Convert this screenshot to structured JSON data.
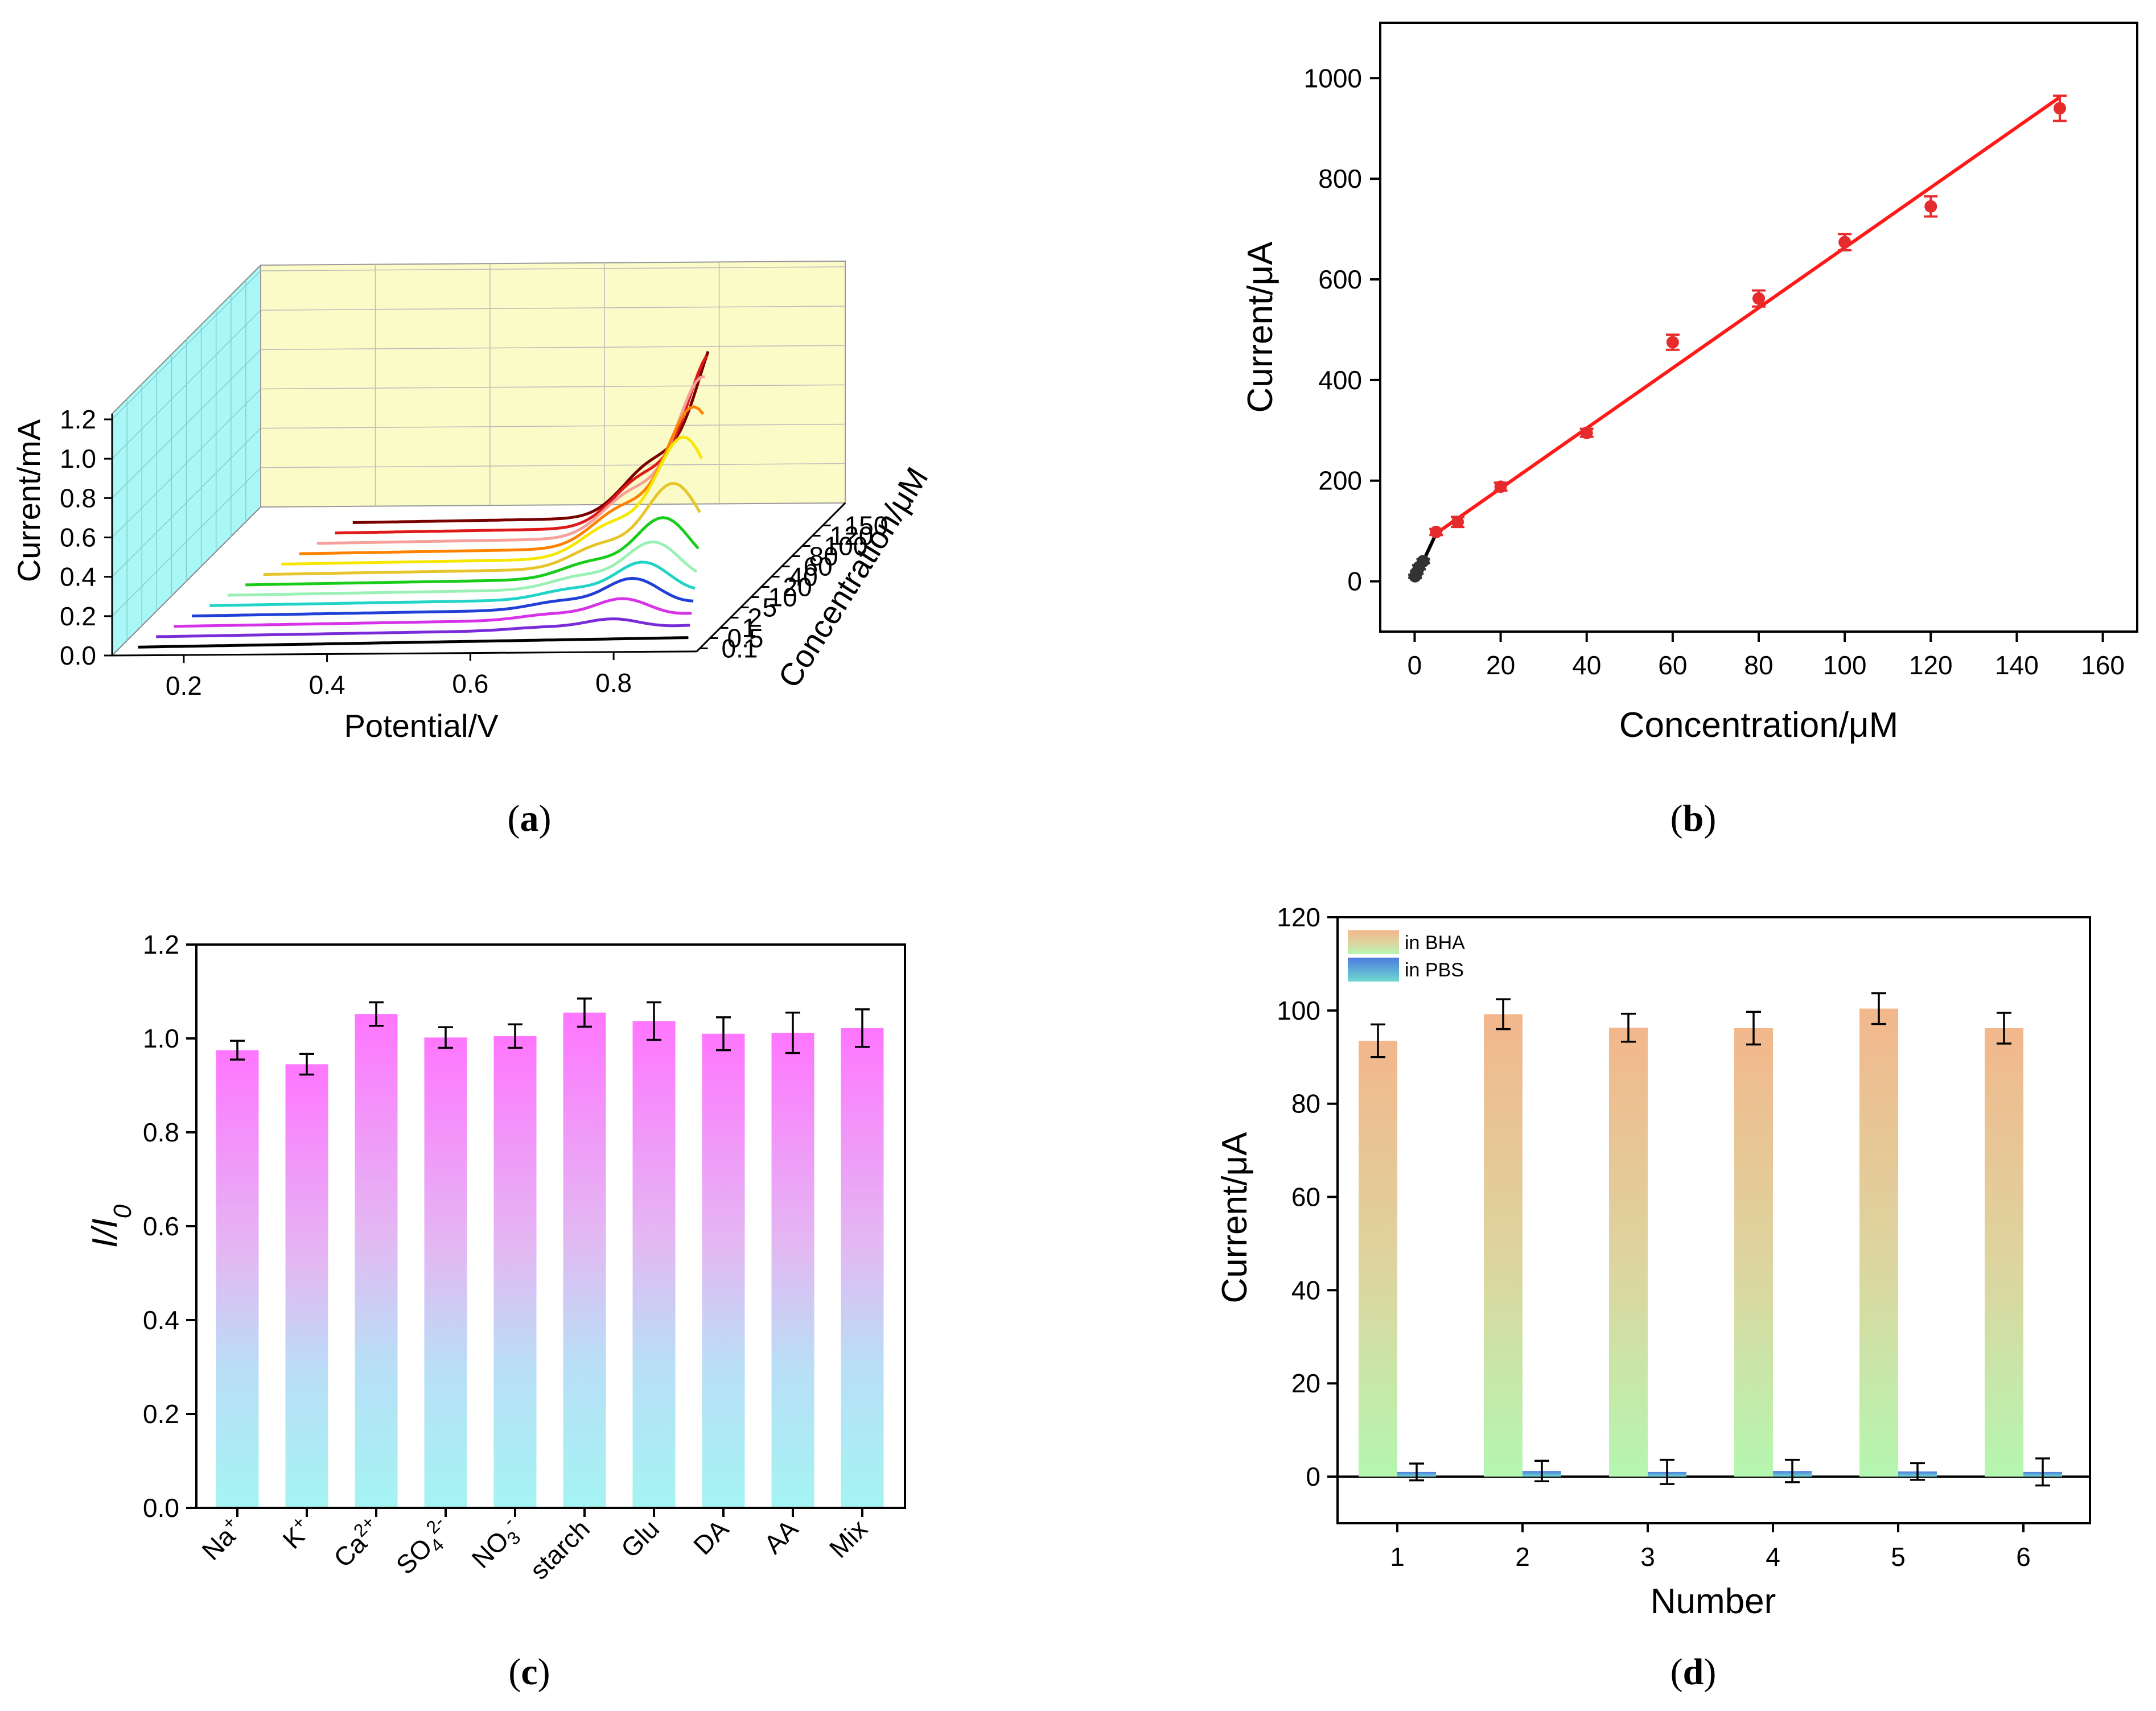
{
  "chart_data": [
    {
      "panel": "a",
      "type": "line",
      "caption": {
        "open": "(",
        "letter": "a",
        "close": ")"
      },
      "xlabel": "Potential/V",
      "ylabel": "Current/mA",
      "zlabel": "Concentration/μM",
      "xlim": [
        0.1,
        0.9
      ],
      "ylim": [
        0,
        1.2
      ],
      "xticks": [
        "0.2",
        "0.4",
        "0.6",
        "0.8"
      ],
      "yticks": [
        "0.0",
        "0.2",
        "0.4",
        "0.6",
        "0.8",
        "1.0",
        "1.2"
      ],
      "series": [
        {
          "name": "0.1",
          "color": "#000000",
          "peak": 0.0
        },
        {
          "name": "0.5",
          "color": "#7a2bd8",
          "peak": 0.05
        },
        {
          "name": "1",
          "color": "#d633e8",
          "peak": 0.1
        },
        {
          "name": "2",
          "color": "#1f3fd6",
          "peak": 0.15
        },
        {
          "name": "5",
          "color": "#22d4c7",
          "peak": 0.18
        },
        {
          "name": "10",
          "color": "#9bf0b4",
          "peak": 0.23
        },
        {
          "name": "20",
          "color": "#19cc1a",
          "peak": 0.3
        },
        {
          "name": "40",
          "color": "#e6c52a",
          "peak": 0.42
        },
        {
          "name": "60",
          "color": "#f6e600",
          "peak": 0.6
        },
        {
          "name": "80",
          "color": "#ff8200",
          "peak": 0.7
        },
        {
          "name": "100",
          "color": "#f5a09a",
          "peak": 0.8
        },
        {
          "name": "120",
          "color": "#e01818",
          "peak": 0.88
        },
        {
          "name": "150",
          "color": "#7a0000",
          "peak": 0.95
        }
      ]
    },
    {
      "panel": "b",
      "type": "scatter",
      "caption": {
        "open": "(",
        "letter": "b",
        "close": ")"
      },
      "xlabel": "Concentration/μM",
      "ylabel": "Current/μA",
      "xlim": [
        -8,
        168
      ],
      "ylim": [
        -100,
        1110
      ],
      "xticks": [
        "0",
        "20",
        "40",
        "60",
        "80",
        "100",
        "120",
        "140",
        "160"
      ],
      "yticks": [
        "0",
        "200",
        "400",
        "600",
        "800",
        "1000"
      ],
      "x": [
        0.1,
        0.5,
        1,
        2,
        5,
        10,
        20,
        40,
        60,
        80,
        100,
        120,
        150
      ],
      "y": [
        10,
        18,
        28,
        40,
        98,
        118,
        188,
        295,
        475,
        562,
        674,
        745,
        940
      ],
      "err": [
        3,
        3,
        4,
        4,
        6,
        10,
        8,
        8,
        15,
        16,
        16,
        20,
        25
      ],
      "fit_low": {
        "color": "#000000",
        "x": [
          0.1,
          5
        ],
        "y": [
          5,
          95
        ]
      },
      "fit_high": {
        "color": "#ff1a1a",
        "x": [
          5,
          150
        ],
        "y": [
          95,
          962
        ]
      }
    },
    {
      "panel": "c",
      "type": "bar",
      "caption": {
        "open": "(",
        "letter": "c",
        "close": ")"
      },
      "ylabel": "I/I0",
      "ylim": [
        0,
        1.2
      ],
      "yticks": [
        "0.0",
        "0.2",
        "0.4",
        "0.6",
        "0.8",
        "1.0",
        "1.2"
      ],
      "categories": [
        "Na+",
        "K+",
        "Ca2+",
        "SO42-",
        "NO3-",
        "starch",
        "Glu",
        "DA",
        "AA",
        "Mix"
      ],
      "values": [
        0.975,
        0.945,
        1.052,
        1.002,
        1.005,
        1.055,
        1.037,
        1.01,
        1.012,
        1.022
      ],
      "errors": [
        0.02,
        0.022,
        0.025,
        0.022,
        0.025,
        0.03,
        0.04,
        0.035,
        0.043,
        0.04
      ]
    },
    {
      "panel": "d",
      "type": "bar",
      "caption": {
        "open": "(",
        "letter": "d",
        "close": ")"
      },
      "xlabel": "Number",
      "ylabel": "Current/μA",
      "ylim": [
        -10,
        120
      ],
      "yticks": [
        "0",
        "20",
        "40",
        "60",
        "80",
        "100",
        "120"
      ],
      "categories": [
        "1",
        "2",
        "3",
        "4",
        "5",
        "6"
      ],
      "series": [
        {
          "name": "in BHA",
          "values": [
            93.5,
            99.2,
            96.3,
            96.2,
            100.4,
            96.2
          ],
          "errors": [
            3.5,
            3.2,
            3.0,
            3.5,
            3.3,
            3.3
          ]
        },
        {
          "name": "in PBS",
          "values": [
            1.0,
            1.2,
            1.0,
            1.2,
            1.1,
            1.0
          ],
          "errors": [
            1.8,
            2.2,
            2.6,
            2.4,
            1.8,
            2.9
          ]
        }
      ]
    }
  ]
}
